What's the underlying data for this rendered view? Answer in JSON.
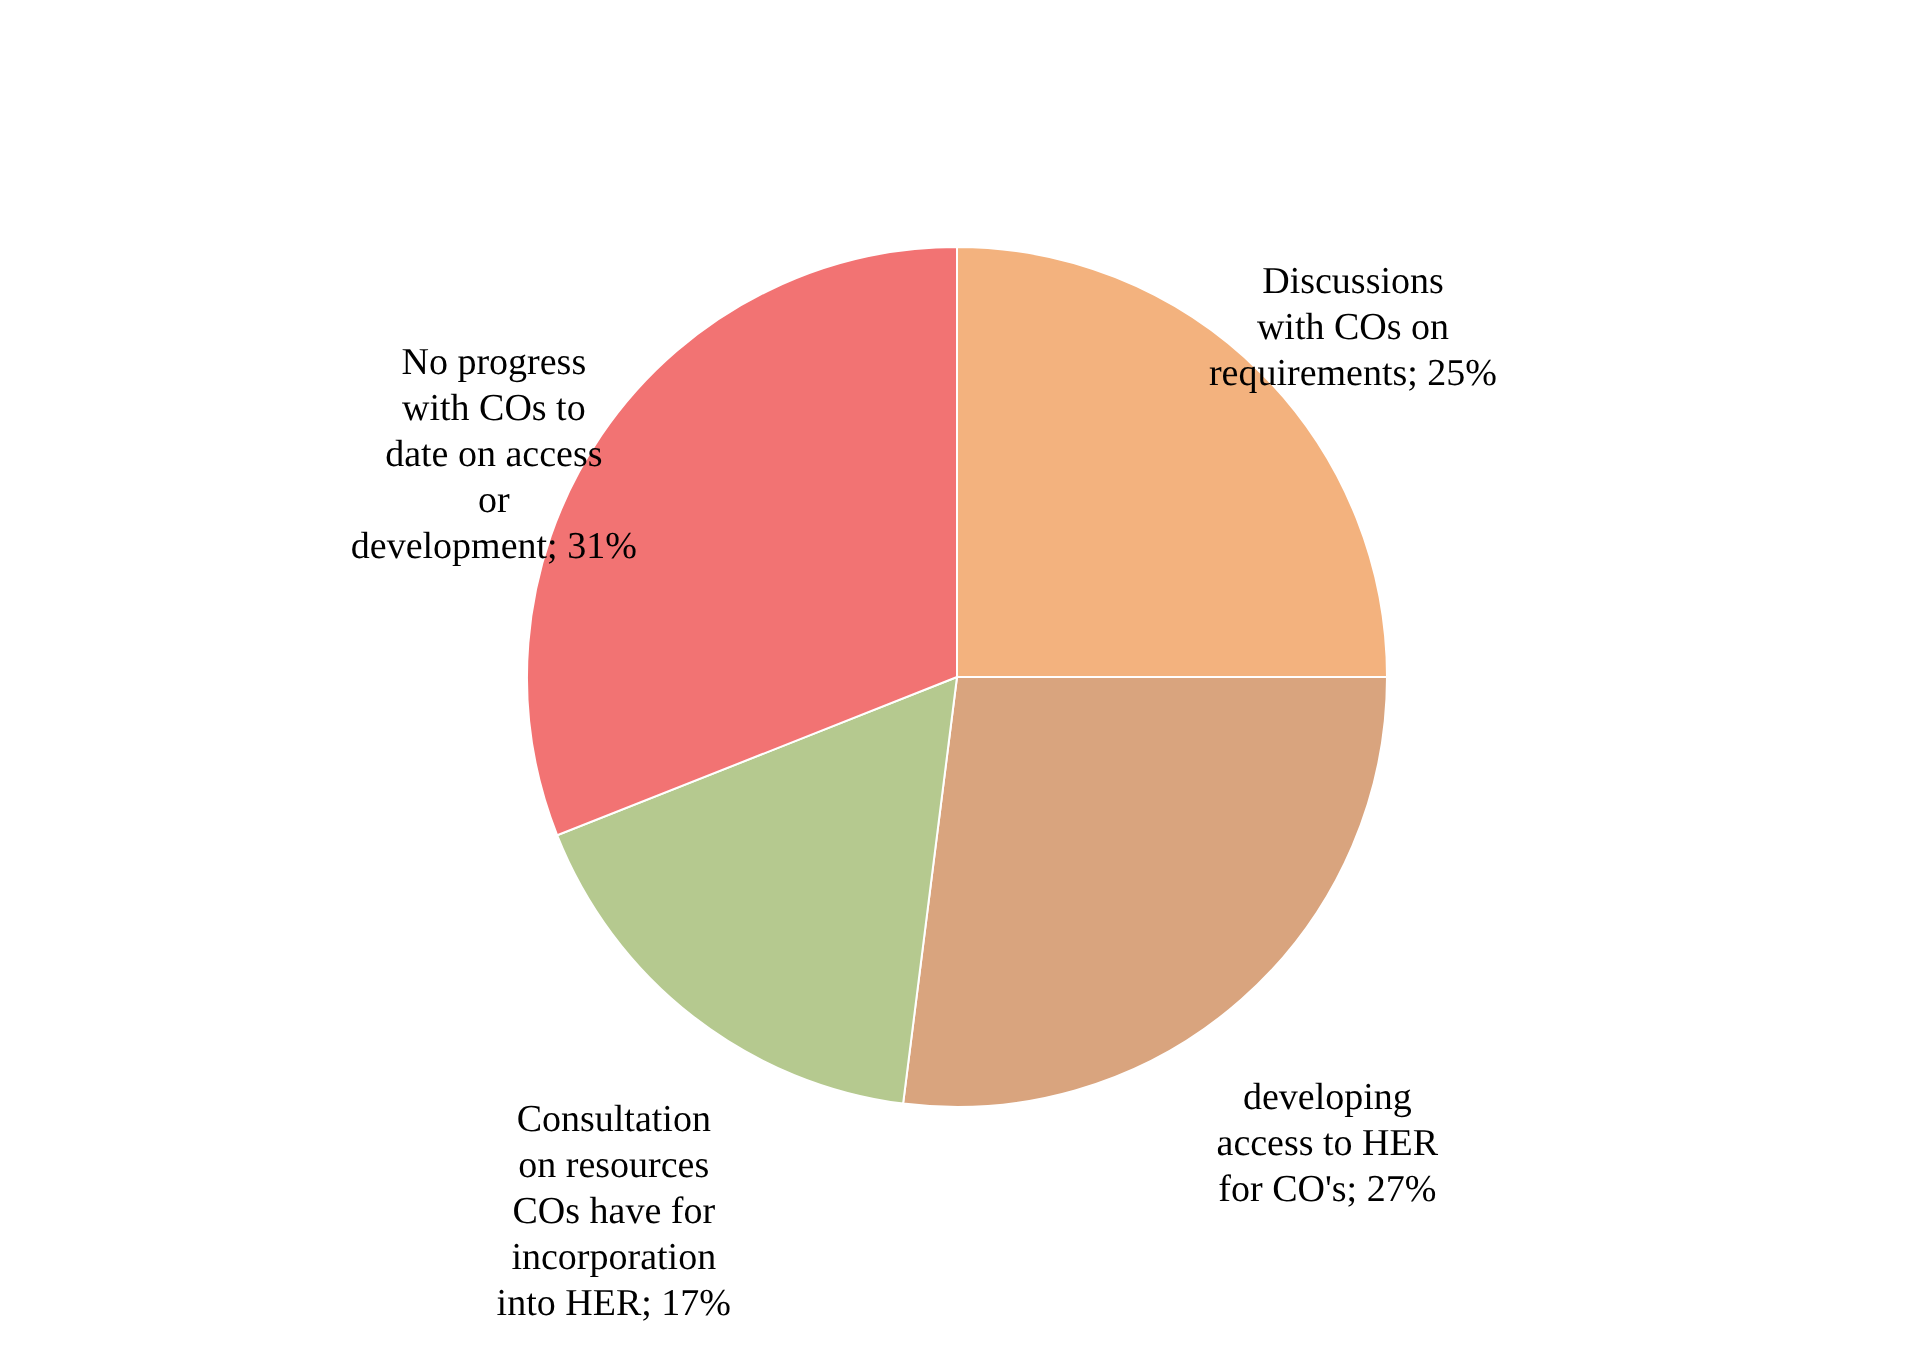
{
  "chart_data": {
    "type": "pie",
    "categories": [
      "Discussions with COs on requirements",
      "developing access to HER for CO's",
      "Consultation on resources COs have for incorporation into HER",
      "No progress with COs to date on access or development"
    ],
    "values": [
      25,
      27,
      17,
      31
    ],
    "value_labels": [
      "25%",
      "27%",
      "17%",
      "31%"
    ],
    "colors": [
      "#f3b27e",
      "#d9a47e",
      "#b5c98f",
      "#f27373"
    ]
  }
}
